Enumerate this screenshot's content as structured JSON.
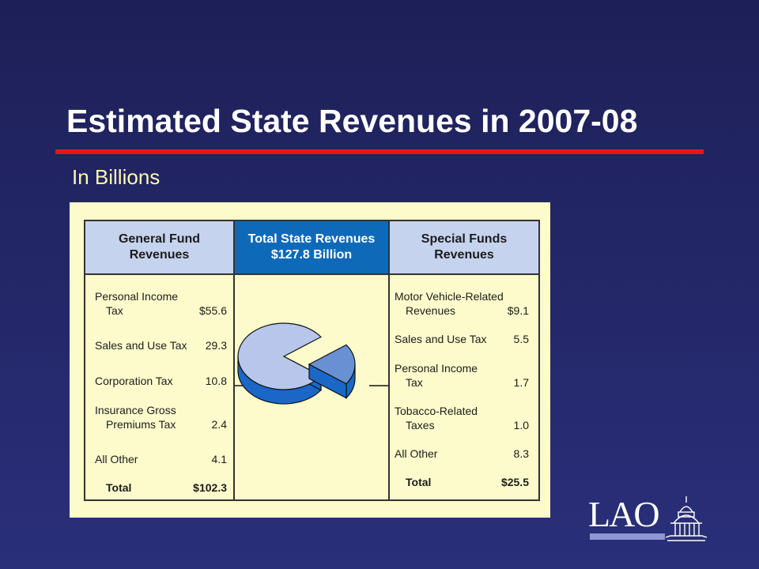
{
  "slide": {
    "title": "Estimated State Revenues in 2007-08",
    "subtitle": "In Billions"
  },
  "headers": {
    "general": [
      "General Fund",
      "Revenues"
    ],
    "total": [
      "Total State Revenues",
      "$127.8 Billion"
    ],
    "special": [
      "Special Funds",
      "Revenues"
    ]
  },
  "general_fund": [
    {
      "label": [
        "Personal Income",
        "Tax"
      ],
      "value": "$55.6"
    },
    {
      "label": [
        "Sales and Use Tax"
      ],
      "value": "29.3"
    },
    {
      "label": [
        "Corporation Tax"
      ],
      "value": "10.8"
    },
    {
      "label": [
        "Insurance Gross",
        "Premiums Tax"
      ],
      "value": "2.4"
    },
    {
      "label": [
        "All Other"
      ],
      "value": "4.1"
    },
    {
      "label": [
        "Total"
      ],
      "value": "$102.3"
    }
  ],
  "special_funds": [
    {
      "label": [
        "Motor Vehicle-Related",
        "Revenues"
      ],
      "value": "$9.1"
    },
    {
      "label": [
        "Sales and Use Tax"
      ],
      "value": "5.5"
    },
    {
      "label": [
        "Personal Income",
        "Tax"
      ],
      "value": "1.7"
    },
    {
      "label": [
        "Tobacco-Related",
        "Taxes"
      ],
      "value": "1.0"
    },
    {
      "label": [
        "All Other"
      ],
      "value": "8.3"
    },
    {
      "label": [
        "Total"
      ],
      "value": "$25.5"
    }
  ],
  "pie": {
    "general_total": 102.3,
    "special_total": 25.5,
    "colors": {
      "general": "#b7c6ea",
      "special": "#6990d2",
      "side": "#1a67c8",
      "stroke": "#111111"
    }
  },
  "logo": {
    "text": "LAO"
  }
}
